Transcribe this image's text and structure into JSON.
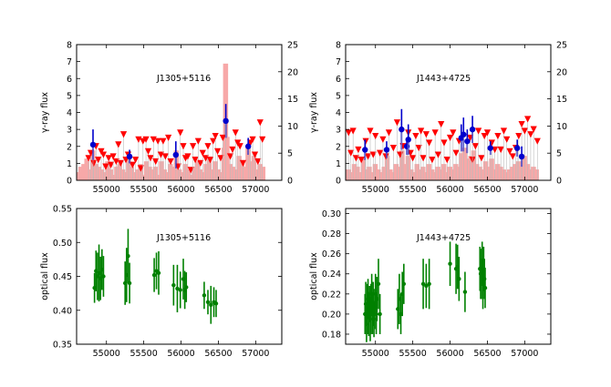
{
  "chart_data": [
    {
      "type": "scatter",
      "title": "J1305+5116",
      "xlabel": "",
      "ylabel": "γ-ray flux",
      "xlim": [
        54600,
        57350
      ],
      "ylim": [
        0,
        8
      ],
      "y2lim": [
        0,
        25
      ],
      "xticks": [
        55000,
        55500,
        56000,
        56500,
        57000
      ],
      "yticks": [
        0,
        1,
        2,
        3,
        4,
        5,
        6,
        7,
        8
      ],
      "y2ticks": [
        0,
        5,
        10,
        15,
        20,
        25
      ],
      "colors": {
        "upper_limit": "#ff0000",
        "detection": "#0000cc",
        "ts_bars": "#f7a8a8",
        "dropline": "#bbbbbb"
      },
      "series": [
        {
          "name": "upper limits",
          "marker": "triangle-down",
          "x": [
            54760,
            54790,
            54830,
            54860,
            54890,
            54930,
            54960,
            54990,
            55030,
            55060,
            55090,
            55130,
            55160,
            55190,
            55230,
            55260,
            55290,
            55350,
            55390,
            55430,
            55460,
            55490,
            55530,
            55560,
            55590,
            55630,
            55660,
            55690,
            55730,
            55760,
            55790,
            55830,
            55860,
            55960,
            55990,
            56030,
            56060,
            56090,
            56130,
            56160,
            56190,
            56230,
            56260,
            56290,
            56330,
            56360,
            56390,
            56430,
            56460,
            56490,
            56530,
            56560,
            56660,
            56690,
            56730,
            56760,
            56790,
            56830,
            56930,
            56960,
            56990,
            57030,
            57060,
            57090
          ],
          "y": [
            1.3,
            1.6,
            1.0,
            2.0,
            1.2,
            1.7,
            1.5,
            0.8,
            1.3,
            0.9,
            1.4,
            1.1,
            2.1,
            1.0,
            2.7,
            1.2,
            1.5,
            0.9,
            1.2,
            2.4,
            0.7,
            2.3,
            2.4,
            1.7,
            1.3,
            2.4,
            1.1,
            2.3,
            1.5,
            2.3,
            1.4,
            2.5,
            1.1,
            0.8,
            2.8,
            2.0,
            1.3,
            1.4,
            0.6,
            2.0,
            1.2,
            2.3,
            1.0,
            1.6,
            1.3,
            2.0,
            1.2,
            2.3,
            2.6,
            1.7,
            1.3,
            2.5,
            1.4,
            1.8,
            2.8,
            2.2,
            2.0,
            1.0,
            2.2,
            2.4,
            1.5,
            1.1,
            3.4,
            2.4
          ]
        },
        {
          "name": "detections",
          "marker": "circle",
          "x": [
            54820,
            55310,
            55930,
            56600,
            56900
          ],
          "y": [
            2.1,
            1.4,
            1.5,
            3.5,
            2.0
          ],
          "yerr": [
            0.9,
            0.4,
            0.8,
            1.0,
            0.5
          ]
        }
      ],
      "ts_bars": {
        "x": [
          54620,
          54660,
          54700,
          54740,
          54780,
          54820,
          54860,
          54900,
          54940,
          54980,
          55020,
          55060,
          55100,
          55140,
          55180,
          55220,
          55260,
          55300,
          55340,
          55380,
          55420,
          55460,
          55500,
          55540,
          55580,
          55620,
          55660,
          55700,
          55740,
          55780,
          55820,
          55860,
          55900,
          55940,
          55980,
          56020,
          56060,
          56100,
          56140,
          56180,
          56220,
          56260,
          56300,
          56340,
          56380,
          56420,
          56460,
          56500,
          56540,
          56580,
          56600,
          56620,
          56660,
          56700,
          56740,
          56780,
          56820,
          56860,
          56900,
          56940,
          56980,
          57020,
          57060,
          57100
        ],
        "values": [
          1.5,
          2.5,
          3.0,
          4.0,
          2.0,
          5.5,
          3.0,
          2.5,
          2.0,
          1.5,
          3.5,
          2.0,
          1.0,
          2.5,
          3.0,
          2.0,
          1.5,
          4.5,
          2.5,
          1.5,
          2.0,
          3.0,
          1.0,
          3.5,
          2.5,
          2.0,
          2.5,
          1.0,
          3.5,
          2.0,
          1.5,
          3.0,
          2.5,
          5.5,
          2.0,
          1.5,
          3.0,
          2.0,
          1.0,
          2.5,
          3.5,
          2.0,
          1.5,
          3.0,
          4.0,
          2.0,
          3.5,
          2.0,
          1.5,
          6.0,
          21.5,
          8.0,
          3.0,
          2.5,
          2.0,
          4.5,
          3.0,
          2.5,
          6.0,
          3.5,
          4.5,
          2.0,
          3.0,
          2.5
        ]
      }
    },
    {
      "type": "scatter",
      "title": "J1443+4725",
      "xlabel": "",
      "ylabel": "γ-ray flux",
      "xlim": [
        54600,
        57350
      ],
      "ylim": [
        0,
        8
      ],
      "y2lim": [
        0,
        25
      ],
      "xticks": [
        55000,
        55500,
        56000,
        56500,
        57000
      ],
      "yticks": [
        0,
        1,
        2,
        3,
        4,
        5,
        6,
        7,
        8
      ],
      "y2ticks": [
        0,
        5,
        10,
        15,
        20,
        25
      ],
      "colors": {
        "upper_limit": "#ff0000",
        "detection": "#0000cc",
        "ts_bars": "#f7a8a8",
        "dropline": "#bbbbbb"
      },
      "series": [
        {
          "name": "upper limits",
          "marker": "triangle-down",
          "x": [
            54640,
            54670,
            54700,
            54740,
            54770,
            54810,
            54870,
            54900,
            54930,
            54970,
            55000,
            55060,
            55100,
            55140,
            55180,
            55240,
            55290,
            55330,
            55370,
            55440,
            55470,
            55500,
            55540,
            55580,
            55610,
            55640,
            55680,
            55720,
            55760,
            55800,
            55840,
            55880,
            55920,
            55960,
            56000,
            56040,
            56080,
            56120,
            56270,
            56300,
            56340,
            56380,
            56420,
            56460,
            56500,
            56560,
            56600,
            56640,
            56680,
            56720,
            56760,
            56800,
            56840,
            56880,
            56920,
            56960,
            57000,
            57040,
            57080,
            57120,
            57170
          ],
          "y": [
            2.8,
            1.6,
            2.9,
            1.3,
            1.8,
            1.2,
            2.3,
            1.4,
            2.9,
            1.5,
            2.6,
            1.6,
            2.4,
            1.4,
            2.8,
            1.9,
            3.4,
            1.5,
            2.0,
            2.8,
            1.6,
            1.3,
            2.6,
            1.9,
            2.9,
            1.3,
            2.7,
            2.2,
            1.2,
            2.8,
            1.5,
            3.3,
            2.2,
            1.2,
            2.5,
            2.8,
            1.6,
            2.3,
            2.5,
            1.2,
            2.0,
            2.9,
            1.3,
            2.6,
            2.8,
            2.2,
            1.8,
            2.6,
            1.8,
            2.9,
            2.4,
            1.7,
            1.4,
            1.9,
            2.6,
            3.3,
            2.9,
            3.6,
            2.7,
            3.0,
            2.3
          ]
        },
        {
          "name": "detections",
          "marker": "circle",
          "x": [
            54860,
            55150,
            55350,
            55420,
            55440,
            56150,
            56180,
            56230,
            56300,
            56540,
            56900,
            56960
          ],
          "y": [
            1.8,
            1.8,
            3.0,
            2.0,
            2.4,
            2.5,
            2.7,
            2.3,
            3.0,
            1.9,
            1.9,
            1.4
          ],
          "yerr": [
            0.6,
            0.5,
            1.2,
            0.5,
            0.9,
            0.8,
            1.0,
            0.7,
            0.8,
            0.4,
            0.5,
            0.6
          ]
        }
      ],
      "ts_bars": {
        "x": [
          54640,
          54680,
          54720,
          54760,
          54800,
          54840,
          54880,
          54920,
          54960,
          55000,
          55040,
          55080,
          55120,
          55160,
          55200,
          55240,
          55280,
          55320,
          55360,
          55400,
          55440,
          55480,
          55520,
          55560,
          55600,
          55640,
          55680,
          55720,
          55760,
          55800,
          55840,
          55880,
          55920,
          55960,
          56000,
          56040,
          56080,
          56120,
          56160,
          56200,
          56240,
          56280,
          56320,
          56360,
          56400,
          56440,
          56480,
          56520,
          56560,
          56600,
          56640,
          56680,
          56720,
          56760,
          56800,
          56840,
          56880,
          56920,
          56960,
          57000,
          57040,
          57080,
          57120,
          57160
        ],
        "values": [
          2.0,
          1.5,
          3.0,
          2.5,
          1.5,
          4.0,
          2.0,
          2.5,
          1.5,
          3.0,
          2.0,
          1.5,
          2.5,
          4.5,
          2.0,
          1.5,
          3.0,
          2.5,
          5.5,
          3.0,
          4.5,
          2.0,
          1.5,
          3.0,
          2.0,
          2.5,
          1.5,
          3.0,
          2.0,
          1.5,
          2.5,
          2.0,
          3.0,
          1.5,
          2.5,
          2.0,
          3.0,
          2.5,
          5.0,
          6.0,
          4.0,
          4.5,
          5.5,
          3.0,
          2.5,
          2.0,
          3.5,
          2.5,
          4.0,
          2.0,
          3.0,
          2.5,
          2.0,
          1.5,
          2.0,
          2.5,
          3.0,
          3.5,
          2.5,
          4.5,
          3.0,
          2.0,
          2.5,
          2.0
        ]
      }
    },
    {
      "type": "scatter",
      "title": "J1305+5116",
      "xlabel": "",
      "ylabel": "optical flux",
      "xlim": [
        54600,
        57350
      ],
      "ylim": [
        0.35,
        0.55
      ],
      "xticks": [
        55000,
        55500,
        56000,
        56500,
        57000
      ],
      "xticklabels": [
        "55000",
        "55500",
        "56000",
        "56500",
        "57000"
      ],
      "yticks": [
        0.35,
        0.4,
        0.45,
        0.5,
        0.55
      ],
      "yticklabels": [
        "0.35",
        "0.40",
        "0.45",
        "0.50",
        "0.55"
      ],
      "colors": {
        "points": "#008000"
      },
      "series": [
        {
          "name": "optical",
          "marker": "circle",
          "x": [
            54840,
            54860,
            54880,
            54900,
            54920,
            54940,
            54960,
            55250,
            55270,
            55290,
            55310,
            55640,
            55670,
            55700,
            55900,
            55950,
            55990,
            56030,
            56050,
            56070,
            56310,
            56360,
            56400,
            56440,
            56470
          ],
          "y": [
            0.433,
            0.458,
            0.45,
            0.455,
            0.447,
            0.46,
            0.45,
            0.44,
            0.452,
            0.48,
            0.44,
            0.452,
            0.458,
            0.455,
            0.437,
            0.432,
            0.43,
            0.446,
            0.43,
            0.434,
            0.422,
            0.412,
            0.408,
            0.412,
            0.41
          ],
          "yerr": [
            0.022,
            0.03,
            0.035,
            0.042,
            0.032,
            0.03,
            0.03,
            0.032,
            0.04,
            0.04,
            0.03,
            0.025,
            0.027,
            0.032,
            0.03,
            0.035,
            0.027,
            0.03,
            0.028,
            0.022,
            0.02,
            0.018,
            0.028,
            0.022,
            0.02
          ]
        }
      ]
    },
    {
      "type": "scatter",
      "title": "J1443+4725",
      "xlabel": "",
      "ylabel": "optical flux",
      "xlim": [
        54600,
        57350
      ],
      "ylim": [
        0.17,
        0.305
      ],
      "xticks": [
        55000,
        55500,
        56000,
        56500,
        57000
      ],
      "xticklabels": [
        "55000",
        "55500",
        "56000",
        "56500",
        "57000"
      ],
      "yticks": [
        0.18,
        0.2,
        0.22,
        0.24,
        0.26,
        0.28,
        0.3
      ],
      "yticklabels": [
        "0.18",
        "0.20",
        "0.22",
        "0.24",
        "0.26",
        "0.28",
        "0.30"
      ],
      "colors": {
        "points": "#008000"
      },
      "series": [
        {
          "name": "optical",
          "marker": "circle",
          "x": [
            54860,
            54870,
            54880,
            54890,
            54900,
            54910,
            54920,
            54930,
            54940,
            54950,
            54960,
            54970,
            54980,
            54990,
            55000,
            55010,
            55020,
            55040,
            55060,
            55300,
            55320,
            55340,
            55360,
            55380,
            55640,
            55680,
            55720,
            56000,
            56080,
            56100,
            56120,
            56200,
            56400,
            56410,
            56420,
            56430,
            56440,
            56450,
            56460,
            56470
          ],
          "y": [
            0.2,
            0.21,
            0.19,
            0.205,
            0.215,
            0.2,
            0.21,
            0.195,
            0.205,
            0.22,
            0.2,
            0.21,
            0.195,
            0.205,
            0.22,
            0.2,
            0.215,
            0.23,
            0.2,
            0.205,
            0.215,
            0.2,
            0.22,
            0.23,
            0.23,
            0.228,
            0.23,
            0.25,
            0.245,
            0.247,
            0.235,
            0.222,
            0.245,
            0.24,
            0.235,
            0.25,
            0.23,
            0.245,
            0.235,
            0.226
          ],
          "yerr": [
            0.02,
            0.022,
            0.018,
            0.025,
            0.02,
            0.022,
            0.018,
            0.022,
            0.025,
            0.02,
            0.02,
            0.022,
            0.018,
            0.02,
            0.02,
            0.02,
            0.022,
            0.025,
            0.02,
            0.02,
            0.025,
            0.02,
            0.022,
            0.02,
            0.025,
            0.022,
            0.025,
            0.022,
            0.025,
            0.022,
            0.022,
            0.02,
            0.022,
            0.025,
            0.02,
            0.022,
            0.025,
            0.022,
            0.02,
            0.02
          ]
        }
      ]
    }
  ]
}
